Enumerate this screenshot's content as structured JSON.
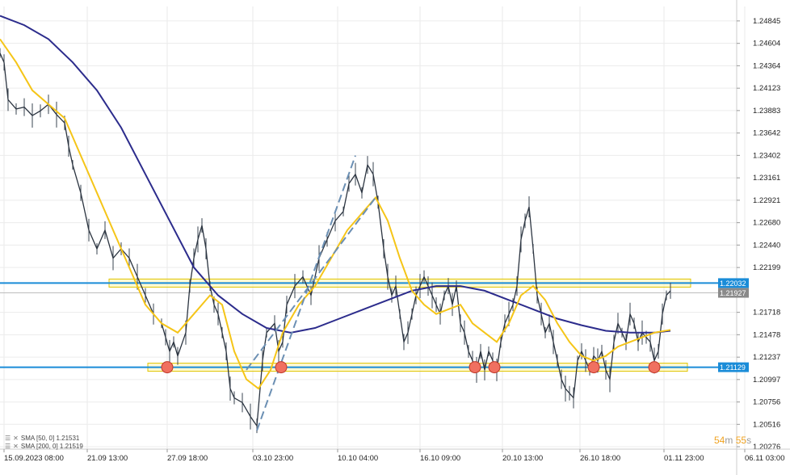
{
  "chart_data": {
    "type": "line",
    "y_ticks": [
      "1.24845",
      "1.24604",
      "1.24364",
      "1.24123",
      "1.23883",
      "1.23642",
      "1.23402",
      "1.23161",
      "1.22921",
      "1.22680",
      "1.22440",
      "1.22199",
      "1.21718",
      "1.21478",
      "1.21237",
      "1.20997",
      "1.20756",
      "1.20516",
      "1.20276"
    ],
    "ylim": [
      1.2025,
      1.25
    ],
    "x_ticks": [
      "15.09.2023 08:00",
      "21.09 13:00",
      "27.09 18:00",
      "03.10 23:00",
      "10.10 04:00",
      "16.10 09:00",
      "20.10 13:00",
      "26.10 18:00",
      "01.11 23:00",
      "06.11 03:00"
    ],
    "current_price_label": "1.21927",
    "resistance_label": "1.22032",
    "support_label": "1.21129",
    "resistance_level": 1.22032,
    "support_level": 1.21129,
    "series": [
      {
        "name": "SMA [50, 0] 1.21531",
        "color": "#f5c518",
        "role": "sma50"
      },
      {
        "name": "SMA [200, 0] 1.21519",
        "color": "#2c2c8c",
        "role": "sma200"
      },
      {
        "name": "Price",
        "color": "#1e2a38",
        "role": "price"
      }
    ],
    "price_path": [
      [
        0,
        1.245
      ],
      [
        5,
        1.244
      ],
      [
        10,
        1.24
      ],
      [
        20,
        1.239
      ],
      [
        30,
        1.2392
      ],
      [
        40,
        1.2383
      ],
      [
        50,
        1.2388
      ],
      [
        60,
        1.2395
      ],
      [
        70,
        1.2384
      ],
      [
        80,
        1.2375
      ],
      [
        85,
        1.235
      ],
      [
        90,
        1.233
      ],
      [
        100,
        1.23
      ],
      [
        110,
        1.226
      ],
      [
        120,
        1.224
      ],
      [
        130,
        1.226
      ],
      [
        140,
        1.223
      ],
      [
        150,
        1.224
      ],
      [
        160,
        1.223
      ],
      [
        170,
        1.221
      ],
      [
        180,
        1.219
      ],
      [
        190,
        1.217
      ],
      [
        200,
        1.216
      ],
      [
        205,
        1.2145
      ],
      [
        210,
        1.213
      ],
      [
        215,
        1.214
      ],
      [
        220,
        1.2125
      ],
      [
        230,
        1.215
      ],
      [
        235,
        1.22
      ],
      [
        240,
        1.223
      ],
      [
        245,
        1.225
      ],
      [
        250,
        1.2265
      ],
      [
        255,
        1.224
      ],
      [
        260,
        1.22
      ],
      [
        265,
        1.218
      ],
      [
        270,
        1.217
      ],
      [
        275,
        1.215
      ],
      [
        280,
        1.213
      ],
      [
        285,
        1.209
      ],
      [
        290,
        1.208
      ],
      [
        300,
        1.2075
      ],
      [
        310,
        1.206
      ],
      [
        318,
        1.205
      ],
      [
        325,
        1.212
      ],
      [
        330,
        1.215
      ],
      [
        340,
        1.216
      ],
      [
        345,
        1.213
      ],
      [
        350,
        1.214
      ],
      [
        355,
        1.218
      ],
      [
        365,
        1.22
      ],
      [
        375,
        1.221
      ],
      [
        385,
        1.219
      ],
      [
        395,
        1.223
      ],
      [
        405,
        1.225
      ],
      [
        415,
        1.227
      ],
      [
        425,
        1.228
      ],
      [
        432,
        1.231
      ],
      [
        440,
        1.232
      ],
      [
        448,
        1.23
      ],
      [
        455,
        1.233
      ],
      [
        462,
        1.232
      ],
      [
        468,
        1.229
      ],
      [
        475,
        1.224
      ],
      [
        480,
        1.221
      ],
      [
        485,
        1.219
      ],
      [
        490,
        1.22
      ],
      [
        495,
        1.217
      ],
      [
        500,
        1.214
      ],
      [
        505,
        1.215
      ],
      [
        510,
        1.217
      ],
      [
        515,
        1.219
      ],
      [
        520,
        1.22
      ],
      [
        525,
        1.221
      ],
      [
        530,
        1.22
      ],
      [
        535,
        1.219
      ],
      [
        540,
        1.218
      ],
      [
        545,
        1.217
      ],
      [
        550,
        1.219
      ],
      [
        555,
        1.22
      ],
      [
        560,
        1.218
      ],
      [
        565,
        1.22
      ],
      [
        570,
        1.216
      ],
      [
        575,
        1.215
      ],
      [
        580,
        1.213
      ],
      [
        585,
        1.212
      ],
      [
        590,
        1.211
      ],
      [
        595,
        1.213
      ],
      [
        600,
        1.211
      ],
      [
        605,
        1.213
      ],
      [
        610,
        1.212
      ],
      [
        615,
        1.211
      ],
      [
        620,
        1.214
      ],
      [
        625,
        1.216
      ],
      [
        630,
        1.217
      ],
      [
        635,
        1.218
      ],
      [
        640,
        1.22
      ],
      [
        645,
        1.225
      ],
      [
        650,
        1.227
      ],
      [
        655,
        1.2285
      ],
      [
        660,
        1.224
      ],
      [
        665,
        1.219
      ],
      [
        670,
        1.217
      ],
      [
        675,
        1.215
      ],
      [
        680,
        1.216
      ],
      [
        685,
        1.214
      ],
      [
        690,
        1.212
      ],
      [
        695,
        1.21
      ],
      [
        700,
        1.209
      ],
      [
        705,
        1.2085
      ],
      [
        710,
        1.208
      ],
      [
        715,
        1.212
      ],
      [
        720,
        1.213
      ],
      [
        725,
        1.212
      ],
      [
        730,
        1.211
      ],
      [
        735,
        1.2125
      ],
      [
        740,
        1.212
      ],
      [
        745,
        1.213
      ],
      [
        750,
        1.211
      ],
      [
        755,
        1.21
      ],
      [
        760,
        1.214
      ],
      [
        765,
        1.216
      ],
      [
        770,
        1.215
      ],
      [
        775,
        1.214
      ],
      [
        780,
        1.217
      ],
      [
        785,
        1.216
      ],
      [
        790,
        1.214
      ],
      [
        795,
        1.215
      ],
      [
        800,
        1.2145
      ],
      [
        805,
        1.214
      ],
      [
        810,
        1.212
      ],
      [
        815,
        1.213
      ],
      [
        820,
        1.217
      ],
      [
        825,
        1.219
      ],
      [
        830,
        1.2195
      ]
    ],
    "sma50_path": [
      [
        0,
        1.2465
      ],
      [
        20,
        1.244
      ],
      [
        40,
        1.241
      ],
      [
        60,
        1.2395
      ],
      [
        80,
        1.238
      ],
      [
        100,
        1.234
      ],
      [
        120,
        1.23
      ],
      [
        140,
        1.226
      ],
      [
        160,
        1.222
      ],
      [
        180,
        1.218
      ],
      [
        200,
        1.216
      ],
      [
        220,
        1.215
      ],
      [
        240,
        1.217
      ],
      [
        260,
        1.219
      ],
      [
        275,
        1.218
      ],
      [
        290,
        1.213
      ],
      [
        305,
        1.21
      ],
      [
        320,
        1.209
      ],
      [
        335,
        1.211
      ],
      [
        350,
        1.215
      ],
      [
        370,
        1.218
      ],
      [
        390,
        1.22
      ],
      [
        410,
        1.223
      ],
      [
        430,
        1.226
      ],
      [
        450,
        1.228
      ],
      [
        465,
        1.2295
      ],
      [
        480,
        1.227
      ],
      [
        495,
        1.223
      ],
      [
        510,
        1.2195
      ],
      [
        525,
        1.218
      ],
      [
        540,
        1.217
      ],
      [
        555,
        1.2175
      ],
      [
        570,
        1.218
      ],
      [
        585,
        1.216
      ],
      [
        600,
        1.215
      ],
      [
        615,
        1.214
      ],
      [
        630,
        1.216
      ],
      [
        645,
        1.219
      ],
      [
        660,
        1.22
      ],
      [
        675,
        1.2185
      ],
      [
        690,
        1.216
      ],
      [
        705,
        1.214
      ],
      [
        720,
        1.2125
      ],
      [
        735,
        1.212
      ],
      [
        750,
        1.2125
      ],
      [
        765,
        1.2135
      ],
      [
        780,
        1.214
      ],
      [
        795,
        1.2145
      ],
      [
        810,
        1.215
      ],
      [
        830,
        1.2153
      ]
    ],
    "sma200_path": [
      [
        0,
        1.249
      ],
      [
        30,
        1.248
      ],
      [
        60,
        1.2465
      ],
      [
        90,
        1.244
      ],
      [
        120,
        1.241
      ],
      [
        150,
        1.237
      ],
      [
        180,
        1.232
      ],
      [
        210,
        1.227
      ],
      [
        240,
        1.222
      ],
      [
        270,
        1.219
      ],
      [
        300,
        1.217
      ],
      [
        330,
        1.2155
      ],
      [
        360,
        1.215
      ],
      [
        390,
        1.2155
      ],
      [
        420,
        1.2165
      ],
      [
        450,
        1.2175
      ],
      [
        480,
        1.2185
      ],
      [
        510,
        1.2195
      ],
      [
        540,
        1.22
      ],
      [
        570,
        1.22
      ],
      [
        600,
        1.2195
      ],
      [
        630,
        1.2185
      ],
      [
        660,
        1.2175
      ],
      [
        690,
        1.2165
      ],
      [
        720,
        1.2158
      ],
      [
        750,
        1.2152
      ],
      [
        780,
        1.215
      ],
      [
        810,
        1.215
      ],
      [
        830,
        1.2152
      ]
    ],
    "channel_lines": [
      [
        [
          318,
          1.2045
        ],
        [
          440,
          1.234
        ]
      ],
      [
        [
          305,
          1.211
        ],
        [
          465,
          1.2295
        ]
      ]
    ],
    "touch_points": [
      [
        207,
        1.21129
      ],
      [
        348,
        1.21129
      ],
      [
        588,
        1.21129
      ],
      [
        612,
        1.21129
      ],
      [
        735,
        1.21129
      ],
      [
        810,
        1.21129
      ]
    ]
  },
  "legend": {
    "sma50": "SMA [50, 0] 1.21531",
    "sma200": "SMA [200, 0] 1.21519"
  },
  "timer": {
    "minutes": "54",
    "m_unit": "m",
    "seconds": "55",
    "s_unit": "s"
  }
}
